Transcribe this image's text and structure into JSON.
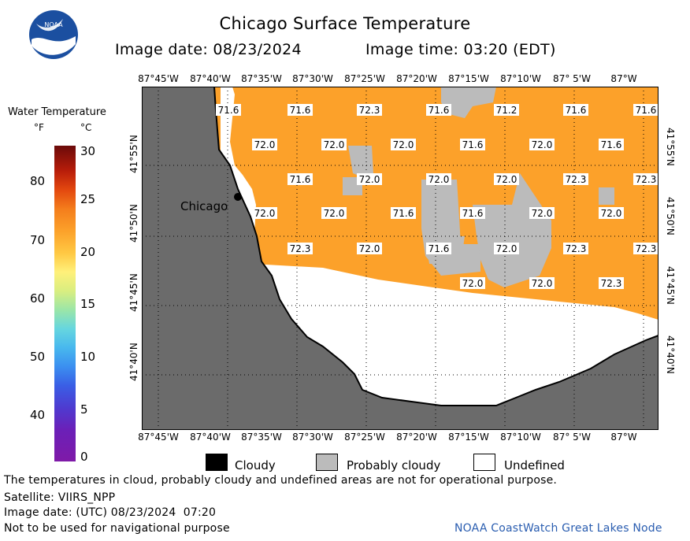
{
  "header": {
    "title": "Chicago Surface Temperature",
    "image_date": "Image date: 08/23/2024",
    "image_time": "Image time: 03:20 (EDT)",
    "logo_text": "NOAA"
  },
  "colorbar": {
    "title": "Water Temperature",
    "unit_f": "°F",
    "unit_c": "°C",
    "f_ticks": [
      "80",
      "70",
      "60",
      "50",
      "40"
    ],
    "c_ticks": [
      "30",
      "25",
      "20",
      "15",
      "10",
      "5",
      "0"
    ]
  },
  "map": {
    "lon_labels": [
      "87°45'W",
      "87°40'W",
      "87°35'W",
      "87°30'W",
      "87°25'W",
      "87°20'W",
      "87°15'W",
      "87°10'W",
      "87° 5'W",
      "87°W"
    ],
    "lat_labels": [
      "41°55'N",
      "41°50'N",
      "41°45'N",
      "41°40'N"
    ],
    "city_label": "Chicago",
    "temperature_labels": [
      [
        "71.6",
        "71.6",
        "72.3",
        "71.6",
        "71.2",
        "71.6",
        "71.6"
      ],
      [
        "72.0",
        "72.0",
        "72.0",
        "71.6",
        "72.0",
        "71.6"
      ],
      [
        "71.6",
        "72.0",
        "72.0",
        "72.0",
        "72.3",
        "72.3"
      ],
      [
        "72.0",
        "72.0",
        "71.6",
        "71.6",
        "72.0",
        "72.0"
      ],
      [
        "72.3",
        "72.0",
        "71.6",
        "72.0",
        "72.3",
        "72.3"
      ],
      [
        "72.0",
        "72.0",
        "72.3"
      ]
    ],
    "colors": {
      "land": "#6b6b6b",
      "water": "#fca12a",
      "cloud": "#bbbbbb",
      "undefined": "#ffffff"
    }
  },
  "legend": {
    "cloudy": "Cloudy",
    "probably_cloudy": "Probably cloudy",
    "undefined": "Undefined"
  },
  "footer": {
    "disclaimer": "The temperatures in cloud, probably cloudy and undefined areas are not for operational purpose.",
    "satellite": "Satellite: VIIRS_NPP",
    "utc_date": "Image date: (UTC) 08/23/2024  07:20",
    "nav_warning": "Not to be used for navigational purpose",
    "credit": "NOAA CoastWatch Great Lakes Node"
  }
}
